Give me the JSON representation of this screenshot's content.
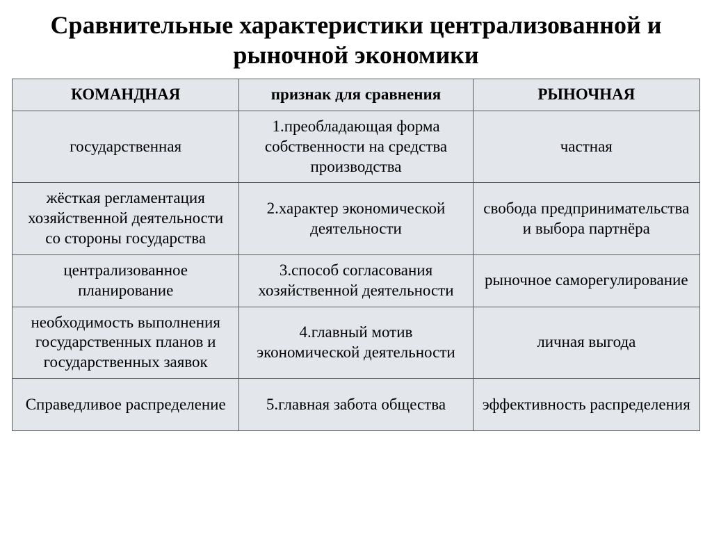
{
  "title": "Сравнительные характеристики централизованной и рыночной экономики",
  "table": {
    "headers": {
      "left": "КОМАНДНАЯ",
      "middle": "признак для сравнения",
      "right": "РЫНОЧНАЯ"
    },
    "rows": [
      {
        "left": "государственная",
        "middle": "1.преобладающая форма собственности на средства производства",
        "right": "частная"
      },
      {
        "left": "жёсткая регламентация хозяйственной деятельности со стороны государства",
        "middle": "2.характер экономической деятельности",
        "right": "свобода предпринимательства и выбора партнёра"
      },
      {
        "left": "централизованное планирование",
        "middle": "3.способ согласования хозяйственной деятельности",
        "right": "рыночное саморегулирование"
      },
      {
        "left": "необходимость выполнения государственных планов и государственных заявок",
        "middle": "4.главный мотив экономической деятельности",
        "right": "личная выгода"
      },
      {
        "left": "Справедливое распределение",
        "middle": "5.главная забота общества",
        "right": "эффективность распределения"
      }
    ]
  },
  "styling": {
    "background_color": "#ffffff",
    "cell_background": "#e3e7ec",
    "border_color": "#5a5a5a",
    "text_color": "#000000",
    "title_fontsize": 36,
    "cell_fontsize": 23,
    "font_family": "Times New Roman"
  }
}
